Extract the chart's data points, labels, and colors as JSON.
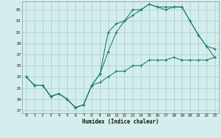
{
  "xlabel": "Humidex (Indice chaleur)",
  "bg_color": "#d4eeed",
  "grid_color": "#b0d4d0",
  "line_color": "#1a7a6e",
  "x_ticks": [
    0,
    1,
    2,
    3,
    4,
    5,
    6,
    7,
    8,
    9,
    10,
    11,
    12,
    13,
    14,
    15,
    16,
    17,
    18,
    19,
    20,
    21,
    22,
    23
  ],
  "y_ticks": [
    17,
    19,
    21,
    23,
    25,
    27,
    29,
    31,
    33,
    35
  ],
  "xlim": [
    -0.5,
    23.5
  ],
  "ylim": [
    16.5,
    36.5
  ],
  "line1_x": [
    0,
    1,
    2,
    3,
    4,
    5,
    6,
    7,
    8,
    9,
    10,
    11,
    12,
    13,
    14,
    15,
    16,
    17,
    18,
    19,
    20,
    21,
    22,
    23
  ],
  "line1_y": [
    23,
    21.5,
    21.5,
    19.5,
    20,
    19,
    17.5,
    18,
    21.5,
    22,
    23,
    24,
    24,
    25,
    25,
    26,
    26,
    26,
    26.5,
    26,
    26,
    26,
    26,
    26.5
  ],
  "line2_x": [
    0,
    1,
    2,
    3,
    4,
    5,
    6,
    7,
    8,
    9,
    10,
    11,
    12,
    13,
    14,
    15,
    16,
    17,
    18,
    19,
    20,
    21,
    22,
    23
  ],
  "line2_y": [
    23,
    21.5,
    21.5,
    19.5,
    20,
    19,
    17.5,
    18,
    21.5,
    23.5,
    31,
    32.5,
    33,
    35,
    35,
    36,
    35.5,
    35.5,
    35.5,
    35.5,
    33,
    30.5,
    28.5,
    28
  ],
  "line3_x": [
    0,
    1,
    2,
    3,
    4,
    5,
    6,
    7,
    8,
    9,
    10,
    11,
    12,
    13,
    14,
    15,
    16,
    17,
    18,
    19,
    20,
    21,
    22,
    23
  ],
  "line3_y": [
    23,
    21.5,
    21.5,
    19.5,
    20,
    19,
    17.5,
    18,
    21.5,
    23.5,
    27.5,
    31,
    33,
    34,
    35,
    36,
    35.5,
    35,
    35.5,
    35.5,
    33,
    30.5,
    28.5,
    26.5
  ]
}
